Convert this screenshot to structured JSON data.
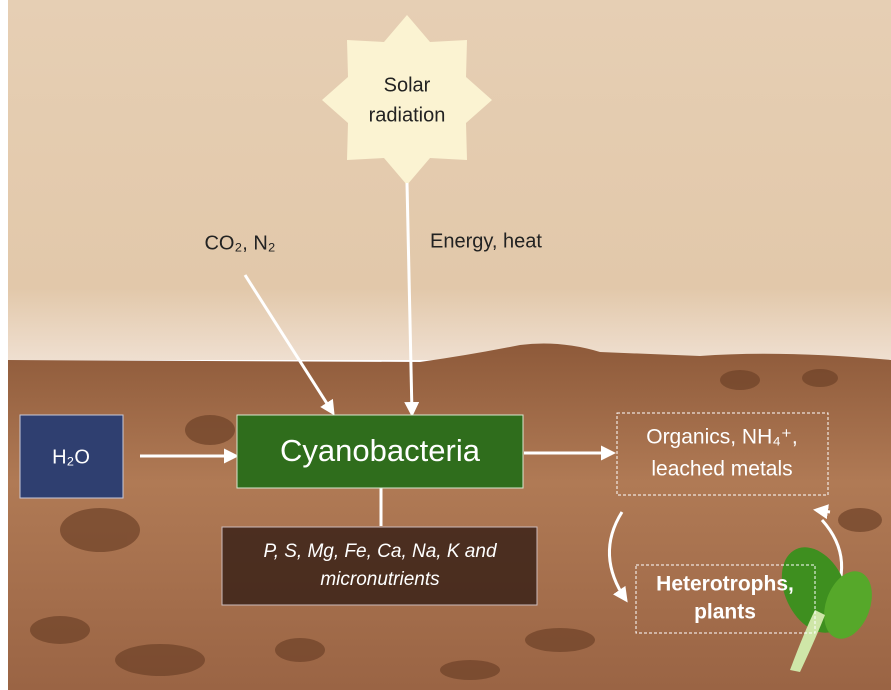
{
  "nodes": [
    {
      "lines": [
        "Solar",
        "radiation"
      ]
    },
    {
      "lines": [
        "CO₂, N₂"
      ]
    },
    {
      "lines": [
        "Energy, heat"
      ]
    },
    {
      "lines": [
        "H₂O"
      ]
    },
    {
      "lines": [
        "Cyanobacteria"
      ]
    },
    {
      "lines": [
        "Organics, NH₄⁺,",
        "leached metals"
      ]
    },
    {
      "lines": [
        "P, S, Mg, Fe, Ca, Na, K and",
        "micronutrients"
      ]
    },
    {
      "lines": [
        "Heterotrophs,",
        "plants"
      ]
    }
  ]
}
